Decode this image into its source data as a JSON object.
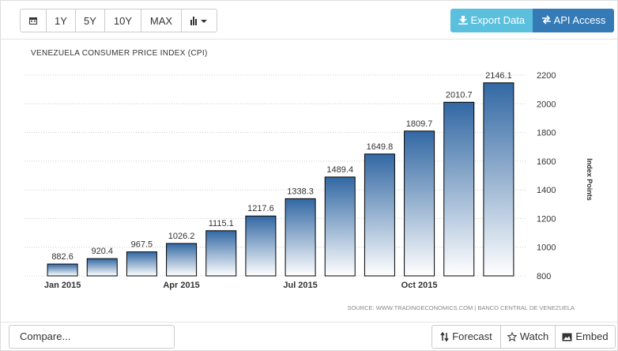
{
  "toolbar": {
    "ranges": [
      "1Y",
      "5Y",
      "10Y",
      "MAX"
    ],
    "export": "Export Data",
    "api": "API Access"
  },
  "chart_data": {
    "type": "bar",
    "title": "VENEZUELA CONSUMER PRICE INDEX (CPI)",
    "categories": [
      "Jan 2015",
      null,
      null,
      "Apr 2015",
      null,
      null,
      "Jul 2015",
      null,
      null,
      "Oct 2015",
      null,
      null
    ],
    "values": [
      882.6,
      920.4,
      967.5,
      1026.2,
      1115.1,
      1217.6,
      1338.3,
      1489.4,
      1649.8,
      1809.7,
      2010.7,
      2146.1
    ],
    "color": "#3268a3",
    "ylim": [
      800,
      2200
    ],
    "yticks": [
      800,
      1000,
      1200,
      1400,
      1600,
      1800,
      2000,
      2200
    ],
    "grid": true,
    "y_label": "Index Points",
    "source": "SOURCE: WWW.TRADINGECONOMICS.COM | BANCO CENTRAL DE VENEZUELA"
  },
  "footer": {
    "compare": "Compare...",
    "forecast": "Forecast",
    "watch": "Watch",
    "embed": "Embed"
  }
}
